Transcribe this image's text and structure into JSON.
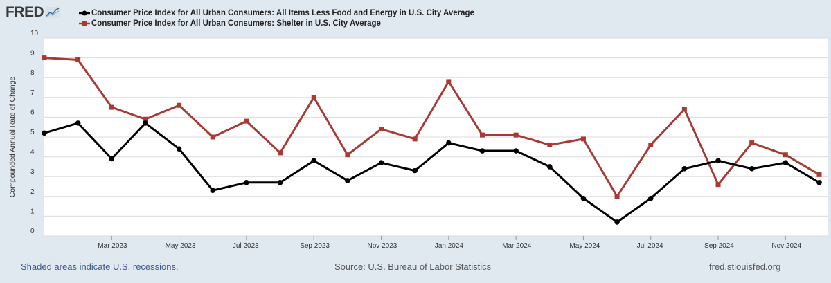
{
  "brand": {
    "name": "FRED"
  },
  "chart_data": {
    "type": "line",
    "ylabel": "Compounded Annual Rate of Change",
    "ylim": [
      0,
      10
    ],
    "yticks": [
      0,
      1,
      2,
      3,
      4,
      5,
      6,
      7,
      8,
      9,
      10
    ],
    "grid": true,
    "legend_position": "top-left",
    "x": [
      "2023-01",
      "2023-02",
      "2023-03",
      "2023-04",
      "2023-05",
      "2023-06",
      "2023-07",
      "2023-08",
      "2023-09",
      "2023-10",
      "2023-11",
      "2023-12",
      "2024-01",
      "2024-02",
      "2024-03",
      "2024-04",
      "2024-05",
      "2024-06",
      "2024-07",
      "2024-08",
      "2024-09",
      "2024-10",
      "2024-11",
      "2024-12"
    ],
    "x_tick_labels": [
      "Mar 2023",
      "May 2023",
      "Jul 2023",
      "Sep 2023",
      "Nov 2023",
      "Jan 2024",
      "Mar 2024",
      "May 2024",
      "Jul 2024",
      "Sep 2024",
      "Nov 2024"
    ],
    "x_tick_index": [
      2,
      4,
      6,
      8,
      10,
      12,
      14,
      16,
      18,
      20,
      22
    ],
    "series": [
      {
        "name": "Consumer Price Index for All Urban Consumers: All Items Less Food and Energy in U.S. City Average",
        "color": "#000000",
        "marker": "circle",
        "values": [
          5.2,
          5.7,
          3.9,
          5.7,
          4.4,
          2.3,
          2.7,
          2.7,
          3.8,
          2.8,
          3.7,
          3.3,
          4.7,
          4.3,
          4.3,
          3.5,
          1.9,
          0.7,
          1.9,
          3.4,
          3.8,
          3.4,
          3.7,
          2.7
        ]
      },
      {
        "name": "Consumer Price Index for All Urban Consumers: Shelter in U.S. City Average",
        "color": "#a83a35",
        "marker": "square",
        "values": [
          9.0,
          8.9,
          6.5,
          5.9,
          6.6,
          5.0,
          5.8,
          4.2,
          7.0,
          4.1,
          5.4,
          4.9,
          7.8,
          5.1,
          5.1,
          4.6,
          4.9,
          2.0,
          4.6,
          6.4,
          2.6,
          4.7,
          4.1,
          3.1
        ]
      }
    ]
  },
  "footer": {
    "recession_note": "Shaded areas indicate U.S. recessions.",
    "source": "Source: U.S. Bureau of Labor Statistics",
    "site": "fred.stlouisfed.org"
  }
}
